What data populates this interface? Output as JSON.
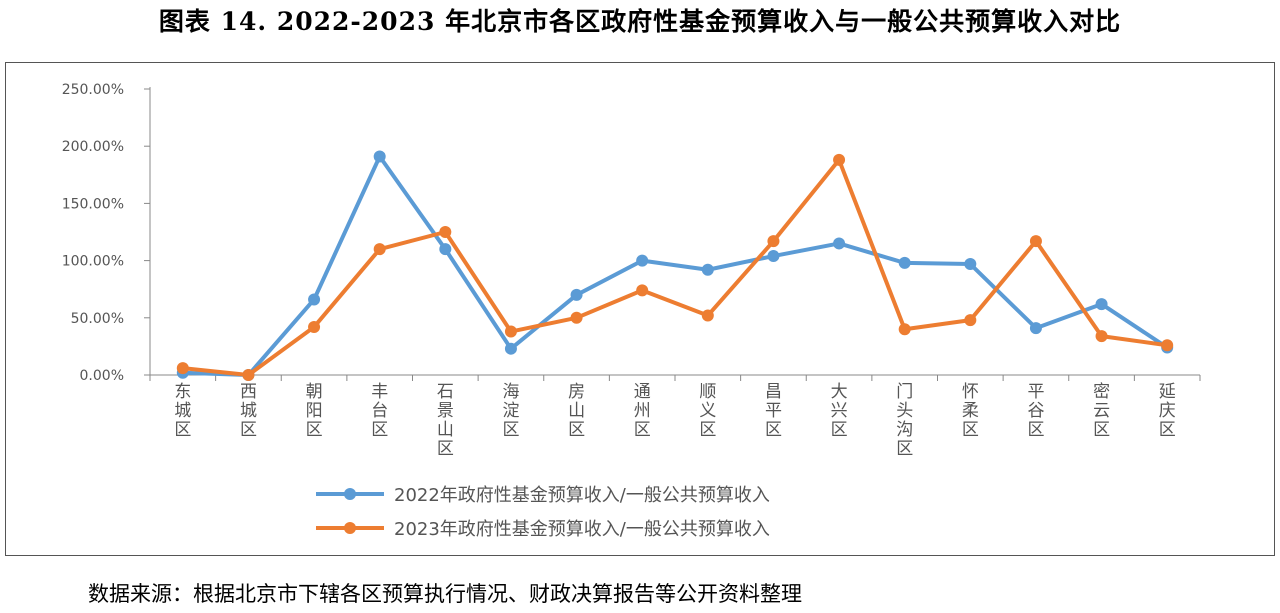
{
  "title": "图表 14. 2022-2023 年北京市各区政府性基金预算收入与一般公共预算收入对比",
  "source": "数据来源：根据北京市下辖各区预算执行情况、财政决算报告等公开资料整理",
  "chart_data": {
    "type": "line",
    "title": "图表 14. 2022-2023 年北京市各区政府性基金预算收入与一般公共预算收入对比",
    "xlabel": "",
    "ylabel": "",
    "ylim": [
      0,
      250
    ],
    "yticks": [
      "0.00%",
      "50.00%",
      "100.00%",
      "150.00%",
      "200.00%",
      "250.00%"
    ],
    "ytick_values": [
      0,
      50,
      100,
      150,
      200,
      250
    ],
    "grid": false,
    "legend_position": "bottom",
    "categories": [
      "东城区",
      "西城区",
      "朝阳区",
      "丰台区",
      "石景山区",
      "海淀区",
      "房山区",
      "通州区",
      "顺义区",
      "昌平区",
      "大兴区",
      "门头沟区",
      "怀柔区",
      "平谷区",
      "密云区",
      "延庆区"
    ],
    "series": [
      {
        "name": "2022年政府性基金预算收入/一般公共预算收入",
        "color": "#5b9bd5",
        "values": [
          2,
          0,
          66,
          191,
          110,
          23,
          70,
          100,
          92,
          104,
          115,
          98,
          97,
          41,
          62,
          24
        ]
      },
      {
        "name": "2023年政府性基金预算收入/一般公共预算收入",
        "color": "#ed7d31",
        "values": [
          6,
          0,
          42,
          110,
          125,
          38,
          50,
          74,
          52,
          117,
          188,
          40,
          48,
          117,
          34,
          26
        ]
      }
    ]
  }
}
